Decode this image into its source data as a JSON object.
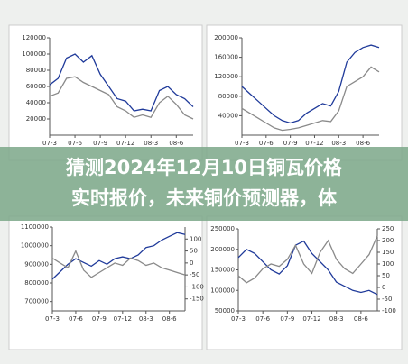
{
  "banner": {
    "lines": [
      "猜测2024年12月10日铜瓦价格",
      "实时报价，未来铜价预测器，体"
    ]
  },
  "chart_data": [
    {
      "type": "line",
      "x": [
        0,
        1,
        2,
        3,
        4,
        5,
        6,
        7,
        8,
        9,
        10,
        11,
        12,
        13,
        14,
        15,
        16,
        17
      ],
      "xlim": [
        0,
        17
      ],
      "xticks": [
        {
          "value": 0,
          "label": "07-3"
        },
        {
          "value": 3,
          "label": "07-6"
        },
        {
          "value": 6,
          "label": "07-9"
        },
        {
          "value": 9,
          "label": "07-12"
        },
        {
          "value": 12,
          "label": "08-3"
        },
        {
          "value": 15,
          "label": "08-6"
        }
      ],
      "ylim": [
        0,
        120000
      ],
      "yticks": [
        20000,
        40000,
        60000,
        80000,
        100000,
        120000
      ],
      "series": [
        {
          "color": "#1f3a9a",
          "values": [
            62000,
            70000,
            95000,
            100000,
            90000,
            98000,
            75000,
            60000,
            45000,
            42000,
            30000,
            32000,
            30000,
            55000,
            60000,
            50000,
            45000,
            35000
          ]
        },
        {
          "color": "#8a8a8a",
          "values": [
            48000,
            52000,
            70000,
            72000,
            65000,
            60000,
            55000,
            50000,
            35000,
            30000,
            22000,
            25000,
            22000,
            40000,
            48000,
            38000,
            25000,
            20000
          ]
        }
      ]
    },
    {
      "type": "line",
      "x": [
        0,
        1,
        2,
        3,
        4,
        5,
        6,
        7,
        8,
        9,
        10,
        11,
        12,
        13,
        14,
        15,
        16,
        17
      ],
      "xlim": [
        0,
        17
      ],
      "xticks": [
        {
          "value": 0,
          "label": "07-3"
        },
        {
          "value": 3,
          "label": "07-6"
        },
        {
          "value": 6,
          "label": "07-9"
        },
        {
          "value": 9,
          "label": "07-12"
        },
        {
          "value": 12,
          "label": "08-3"
        },
        {
          "value": 15,
          "label": "08-6"
        }
      ],
      "ylim": [
        0,
        200000
      ],
      "yticks": [
        40000,
        80000,
        120000,
        160000,
        200000
      ],
      "series": [
        {
          "color": "#1f3a9a",
          "values": [
            100000,
            85000,
            70000,
            55000,
            40000,
            30000,
            25000,
            30000,
            45000,
            55000,
            65000,
            60000,
            90000,
            150000,
            170000,
            180000,
            185000,
            180000
          ]
        },
        {
          "color": "#8a8a8a",
          "values": [
            55000,
            45000,
            35000,
            25000,
            15000,
            10000,
            12000,
            15000,
            20000,
            25000,
            30000,
            28000,
            50000,
            100000,
            110000,
            120000,
            140000,
            130000
          ]
        }
      ]
    },
    {
      "type": "line",
      "x": [
        0,
        1,
        2,
        3,
        4,
        5,
        6,
        7,
        8,
        9,
        10,
        11,
        12,
        13,
        14,
        15,
        16,
        17
      ],
      "xlim": [
        0,
        17
      ],
      "xticks": [
        {
          "value": 0,
          "label": "07-3"
        },
        {
          "value": 3,
          "label": "07-6"
        },
        {
          "value": 6,
          "label": "07-9"
        },
        {
          "value": 9,
          "label": "07-12"
        },
        {
          "value": 12,
          "label": "08-3"
        },
        {
          "value": 15,
          "label": "08-6"
        }
      ],
      "ylim": [
        650000,
        1100000
      ],
      "yticks": [
        700000,
        800000,
        900000,
        1000000,
        1100000
      ],
      "y2lim": [
        -200,
        150
      ],
      "y2ticks": [
        -150,
        -100,
        -50,
        0,
        50,
        100
      ],
      "series": [
        {
          "color": "#1f3a9a",
          "values": [
            820000,
            860000,
            900000,
            930000,
            910000,
            890000,
            920000,
            900000,
            930000,
            940000,
            930000,
            950000,
            990000,
            1000000,
            1030000,
            1050000,
            1070000,
            1060000
          ]
        },
        {
          "color": "#8a8a8a",
          "axis": "y2",
          "values": [
            20,
            0,
            -20,
            50,
            -30,
            -60,
            -40,
            -20,
            0,
            -10,
            20,
            10,
            -10,
            0,
            -20,
            -30,
            -40,
            -50
          ]
        }
      ]
    },
    {
      "type": "line",
      "x": [
        0,
        1,
        2,
        3,
        4,
        5,
        6,
        7,
        8,
        9,
        10,
        11,
        12,
        13,
        14,
        15,
        16,
        17
      ],
      "xlim": [
        0,
        17
      ],
      "xticks": [
        {
          "value": 0,
          "label": "07-3"
        },
        {
          "value": 3,
          "label": "07-6"
        },
        {
          "value": 6,
          "label": "07-9"
        },
        {
          "value": 9,
          "label": "07-12"
        },
        {
          "value": 12,
          "label": "08-3"
        },
        {
          "value": 15,
          "label": "08-6"
        }
      ],
      "ylim": [
        50000,
        250000
      ],
      "yticks": [
        50000,
        100000,
        150000,
        200000,
        250000
      ],
      "y2lim": [
        -100,
        250
      ],
      "y2ticks": [
        -100,
        -50,
        0,
        50,
        100,
        150,
        200,
        250
      ],
      "series": [
        {
          "color": "#1f3a9a",
          "values": [
            180000,
            200000,
            190000,
            170000,
            150000,
            140000,
            160000,
            210000,
            220000,
            190000,
            170000,
            150000,
            120000,
            110000,
            100000,
            95000,
            100000,
            90000
          ]
        },
        {
          "color": "#8a8a8a",
          "axis": "y2",
          "values": [
            50,
            20,
            40,
            80,
            100,
            90,
            120,
            180,
            100,
            60,
            150,
            200,
            120,
            80,
            60,
            100,
            140,
            220
          ]
        }
      ]
    }
  ]
}
